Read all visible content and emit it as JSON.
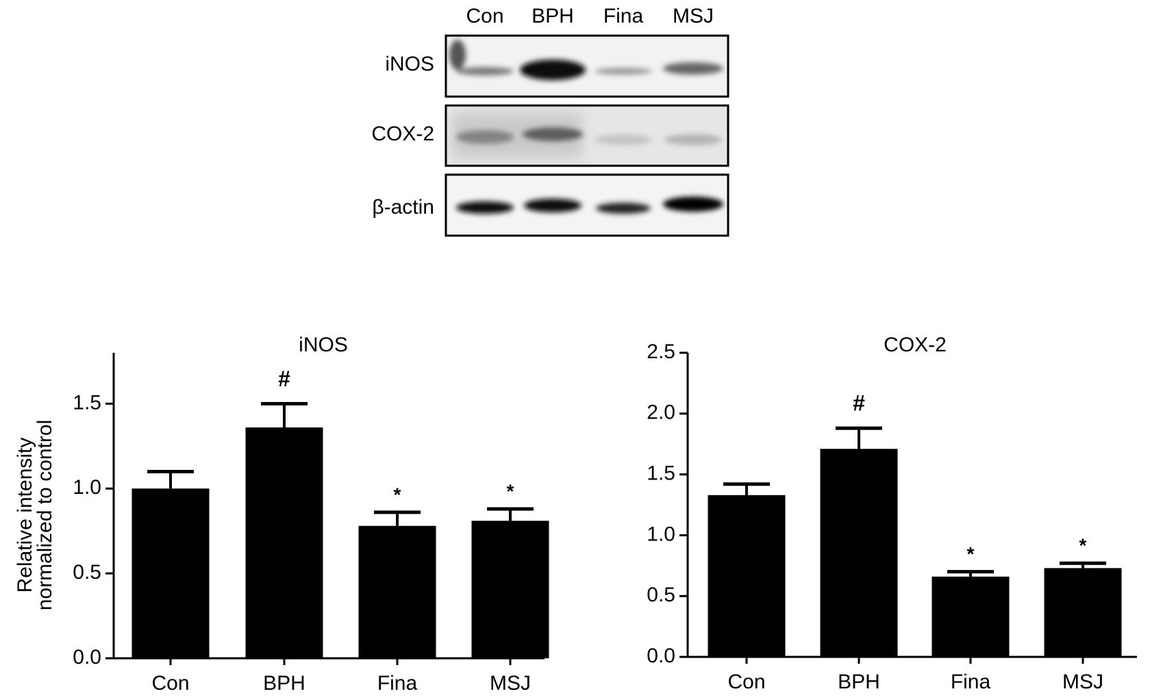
{
  "blot": {
    "lanes": [
      "Con",
      "BPH",
      "Fina",
      "MSJ"
    ],
    "rows": [
      "iNOS",
      "COX-2",
      "β-actin"
    ]
  },
  "chart_data": [
    {
      "type": "bar",
      "title": "iNOS",
      "ylabel": [
        "Relative intensity",
        "normalized to control"
      ],
      "categories": [
        "Con",
        "BPH",
        "Fina",
        "MSJ"
      ],
      "values": [
        1.0,
        1.36,
        0.78,
        0.81
      ],
      "errors": [
        0.1,
        0.14,
        0.08,
        0.07
      ],
      "annotations": [
        null,
        "#",
        "*",
        "*"
      ],
      "color": "#000000",
      "ylim": [
        0,
        1.8
      ],
      "yticks": [
        {
          "value": 0,
          "label": "0.0"
        },
        0.5,
        {
          "value": 1,
          "label": "1.0"
        },
        1.5
      ]
    },
    {
      "type": "bar",
      "title": "COX-2",
      "categories": [
        "Con",
        "BPH",
        "Fina",
        "MSJ"
      ],
      "values": [
        1.33,
        1.71,
        0.66,
        0.73
      ],
      "errors": [
        0.09,
        0.17,
        0.04,
        0.04
      ],
      "annotations": [
        null,
        "#",
        "*",
        "*"
      ],
      "color": "#000000",
      "ylim": [
        0,
        2.5
      ],
      "yticks": [
        {
          "value": 0,
          "label": "0.0"
        },
        0.5,
        {
          "value": 1,
          "label": "1.0"
        },
        1.5,
        {
          "value": 2,
          "label": "2.0"
        },
        2.5
      ]
    }
  ]
}
